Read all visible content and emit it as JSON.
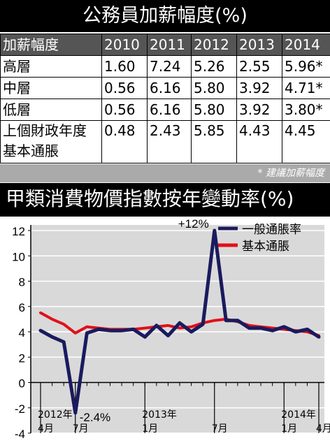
{
  "table": {
    "title": "公務員加薪幅度(%)",
    "header": [
      "加薪幅度",
      "2010",
      "2011",
      "2012",
      "2013",
      "2014"
    ],
    "rows": [
      {
        "label": "高層",
        "values": [
          "1.60",
          "7.24",
          "5.26",
          "2.55",
          "5.96*"
        ]
      },
      {
        "label": "中層",
        "values": [
          "0.56",
          "6.16",
          "5.80",
          "3.92",
          "4.71*"
        ]
      },
      {
        "label": "低層",
        "values": [
          "0.56",
          "6.16",
          "5.80",
          "3.92",
          "3.80*"
        ]
      },
      {
        "label": "上個財政年度\n基本通脹",
        "values": [
          "0.48",
          "2.43",
          "5.85",
          "4.43",
          "4.45"
        ]
      }
    ],
    "note": "* 建議加薪幅度"
  },
  "chart_data": {
    "type": "line",
    "title": "甲類消費物價指數按年變動率(%)",
    "ylim": [
      -4,
      12
    ],
    "yticks": [
      12,
      10,
      8,
      6,
      4,
      2,
      0,
      -2,
      -4
    ],
    "xticks": [
      {
        "index": 0,
        "line1": "2012年",
        "line2": "4月"
      },
      {
        "index": 3,
        "line1": "",
        "line2": "7月"
      },
      {
        "index": 9,
        "line1": "2013年",
        "line2": "1月"
      },
      {
        "index": 15,
        "line1": "",
        "line2": "7月"
      },
      {
        "index": 21,
        "line1": "2014年",
        "line2": "1月"
      },
      {
        "index": 24,
        "line1": "",
        "line2": "4月"
      }
    ],
    "x": [
      "2012-04",
      "2012-05",
      "2012-06",
      "2012-07",
      "2012-08",
      "2012-09",
      "2012-10",
      "2012-11",
      "2012-12",
      "2013-01",
      "2013-02",
      "2013-03",
      "2013-04",
      "2013-05",
      "2013-06",
      "2013-07",
      "2013-08",
      "2013-09",
      "2013-10",
      "2013-11",
      "2013-12",
      "2014-01",
      "2014-02",
      "2014-03",
      "2014-04"
    ],
    "series": [
      {
        "name": "一般通脹率",
        "color": "#1a1a5e",
        "values": [
          4.1,
          3.6,
          3.2,
          -2.4,
          3.9,
          4.2,
          4.1,
          4.1,
          4.2,
          3.6,
          4.5,
          3.7,
          4.7,
          4.0,
          4.6,
          12.0,
          4.9,
          4.9,
          4.3,
          4.3,
          4.1,
          4.4,
          4.0,
          4.2,
          3.6
        ]
      },
      {
        "name": "基本通脹",
        "color": "#e0101a",
        "values": [
          5.5,
          5.0,
          4.6,
          3.9,
          4.4,
          4.3,
          4.2,
          4.2,
          4.2,
          4.3,
          4.4,
          4.5,
          4.3,
          4.4,
          4.7,
          4.9,
          5.0,
          4.8,
          4.5,
          4.4,
          4.3,
          4.2,
          4.1,
          4.0,
          3.7
        ]
      }
    ],
    "annotations": [
      {
        "series": 0,
        "index": 15,
        "text": "+12%"
      },
      {
        "series": 0,
        "index": 3,
        "text": "-2.4%"
      }
    ],
    "legend_position": "top-right",
    "grid": true
  }
}
